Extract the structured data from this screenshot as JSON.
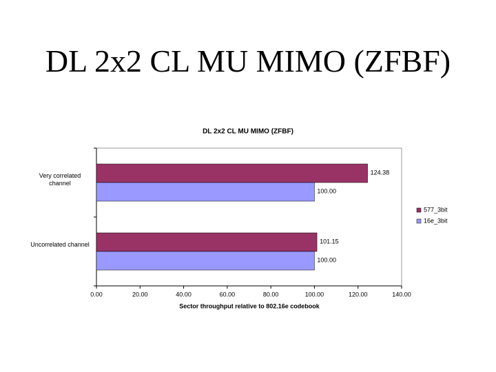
{
  "slide_title": "DL 2x2 CL MU MIMO (ZFBF)",
  "chart_data": {
    "type": "bar",
    "orientation": "horizontal",
    "title": "DL 2x2 CL MU MIMO (ZFBF)",
    "x_label": "Sector throughput relative to 802.16e codebook",
    "categories": [
      "Very correlated channel",
      "Uncorrelated channel"
    ],
    "series": [
      {
        "name": "577_3bit",
        "color": "#993366",
        "values": [
          124.38,
          101.15
        ],
        "value_labels": [
          "124.38",
          "101.15"
        ]
      },
      {
        "name": "16e_3bit",
        "color": "#9999ff",
        "values": [
          100,
          100
        ],
        "value_labels": [
          "100.00",
          "100.00"
        ]
      }
    ],
    "xlim": [
      0,
      140
    ],
    "xticks": [
      {
        "value": 0,
        "label": "0.00"
      },
      {
        "value": 20,
        "label": "20.00"
      },
      {
        "value": 40,
        "label": "40.00"
      },
      {
        "value": 60,
        "label": "60.00"
      },
      {
        "value": 80,
        "label": "80.00"
      },
      {
        "value": 100,
        "label": "100.00"
      },
      {
        "value": 120,
        "label": "120.00"
      },
      {
        "value": 140,
        "label": "140.00"
      }
    ],
    "legend": "right"
  }
}
